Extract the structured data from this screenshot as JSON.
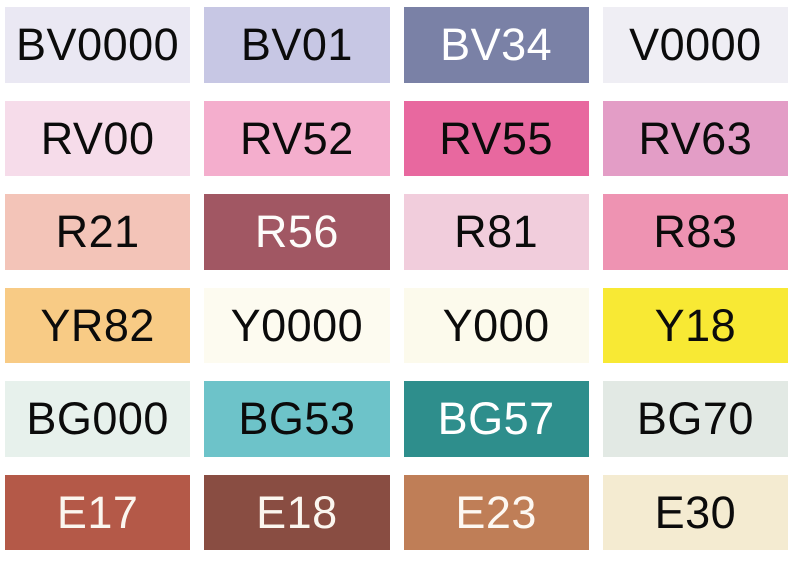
{
  "page": {
    "background": "#ffffff",
    "grid": {
      "columns": 4,
      "rows": 6
    }
  },
  "swatches": [
    {
      "code": "BV0000",
      "color": "#eae8f3",
      "label_color": "#0b0b0b"
    },
    {
      "code": "BV01",
      "color": "#c7c7e4",
      "label_color": "#0b0b0b"
    },
    {
      "code": "BV34",
      "color": "#7a81a6",
      "label_color": "#ffffff"
    },
    {
      "code": "V0000",
      "color": "#efeef4",
      "label_color": "#0b0b0b"
    },
    {
      "code": "RV00",
      "color": "#f6dcea",
      "label_color": "#0b0b0b"
    },
    {
      "code": "RV52",
      "color": "#f4aecd",
      "label_color": "#0b0b0b"
    },
    {
      "code": "RV55",
      "color": "#e8689f",
      "label_color": "#0b0b0b"
    },
    {
      "code": "RV63",
      "color": "#e39dc6",
      "label_color": "#0b0b0b"
    },
    {
      "code": "R21",
      "color": "#f3c4b8",
      "label_color": "#0b0b0b"
    },
    {
      "code": "R56",
      "color": "#a15763",
      "label_color": "#fdfcfa"
    },
    {
      "code": "R81",
      "color": "#f1cddc",
      "label_color": "#0b0b0b"
    },
    {
      "code": "R83",
      "color": "#ee93b2",
      "label_color": "#0b0b0b"
    },
    {
      "code": "YR82",
      "color": "#f8cb85",
      "label_color": "#0b0b0b"
    },
    {
      "code": "Y0000",
      "color": "#fdfbf0",
      "label_color": "#0b0b0b"
    },
    {
      "code": "Y000",
      "color": "#fcfaec",
      "label_color": "#0b0b0b"
    },
    {
      "code": "Y18",
      "color": "#f8e934",
      "label_color": "#0b0b0b"
    },
    {
      "code": "BG000",
      "color": "#e7f1ec",
      "label_color": "#0b0b0b"
    },
    {
      "code": "BG53",
      "color": "#6dc3c9",
      "label_color": "#0b0b0b"
    },
    {
      "code": "BG57",
      "color": "#2e8e8c",
      "label_color": "#ffffff"
    },
    {
      "code": "BG70",
      "color": "#e2e9e4",
      "label_color": "#0b0b0b"
    },
    {
      "code": "E17",
      "color": "#b45948",
      "label_color": "#fbf6ef"
    },
    {
      "code": "E18",
      "color": "#894d42",
      "label_color": "#fbf6ef"
    },
    {
      "code": "E23",
      "color": "#bf7e57",
      "label_color": "#fdf8f2"
    },
    {
      "code": "E30",
      "color": "#f4ebd1",
      "label_color": "#0b0b0b"
    }
  ]
}
